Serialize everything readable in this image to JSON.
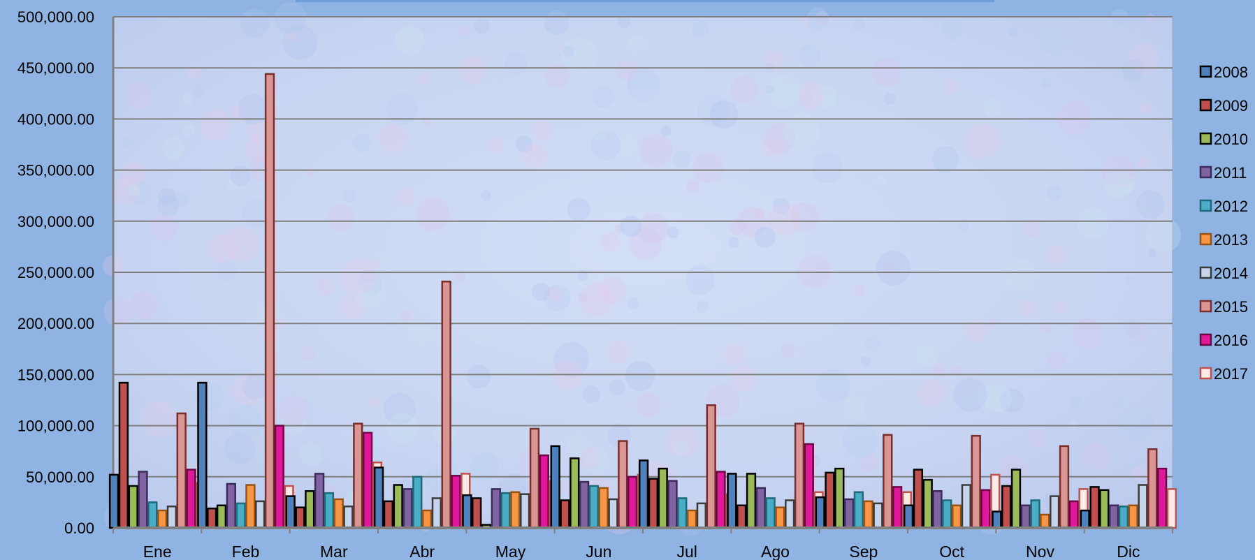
{
  "chart_data": {
    "type": "bar",
    "title": "",
    "xlabel": "",
    "ylabel": "",
    "ylim": [
      0,
      500000
    ],
    "ytick_step": 50000,
    "yticks": [
      "0.00",
      "50,000.00",
      "100,000.00",
      "150,000.00",
      "200,000.00",
      "250,000.00",
      "300,000.00",
      "350,000.00",
      "400,000.00",
      "450,000.00",
      "500,000.00"
    ],
    "grid": true,
    "legend_position": "right",
    "categories": [
      "Ene",
      "Feb",
      "Mar",
      "Abr",
      "May",
      "Jun",
      "Jul",
      "Ago",
      "Sep",
      "Oct",
      "Nov",
      "Dic"
    ],
    "series": [
      {
        "name": "2008",
        "color": "#4f81bd",
        "stroke": "#000000",
        "values": [
          52000,
          142000,
          31000,
          59000,
          32000,
          80000,
          66000,
          53000,
          30000,
          22000,
          16000,
          17000
        ]
      },
      {
        "name": "2009",
        "color": "#c0504d",
        "stroke": "#000000",
        "values": [
          142000,
          19000,
          20000,
          26000,
          29000,
          27000,
          48000,
          22000,
          54000,
          57000,
          41000,
          40000
        ]
      },
      {
        "name": "2010",
        "color": "#9bbb59",
        "stroke": "#000000",
        "values": [
          41000,
          22000,
          36000,
          42000,
          3000,
          68000,
          58000,
          53000,
          58000,
          47000,
          57000,
          37000
        ]
      },
      {
        "name": "2011",
        "color": "#8064a2",
        "stroke": "#3c2a5a",
        "values": [
          55000,
          43000,
          53000,
          38000,
          38000,
          45000,
          46000,
          39000,
          28000,
          36000,
          22000,
          22000
        ]
      },
      {
        "name": "2012",
        "color": "#4bacc6",
        "stroke": "#1f6a7a",
        "values": [
          25000,
          24000,
          34000,
          50000,
          34000,
          41000,
          29000,
          29000,
          35000,
          27000,
          27000,
          21000
        ]
      },
      {
        "name": "2013",
        "color": "#f79646",
        "stroke": "#9a5210",
        "values": [
          17000,
          42000,
          28000,
          17000,
          35000,
          39000,
          17000,
          20000,
          26000,
          22000,
          13000,
          22000
        ]
      },
      {
        "name": "2014",
        "color": "#c6d4ec",
        "stroke": "#3a3a3a",
        "values": [
          21000,
          26000,
          21000,
          29000,
          33000,
          28000,
          24000,
          27000,
          24000,
          42000,
          31000,
          42000
        ]
      },
      {
        "name": "2015",
        "color": "#d99694",
        "stroke": "#7a2e2c",
        "values": [
          112000,
          444000,
          102000,
          241000,
          97000,
          85000,
          120000,
          102000,
          91000,
          90000,
          80000,
          77000
        ]
      },
      {
        "name": "2016",
        "color": "#e0189a",
        "stroke": "#6a0845",
        "values": [
          57000,
          100000,
          93000,
          51000,
          71000,
          50000,
          55000,
          82000,
          40000,
          37000,
          26000,
          58000
        ]
      },
      {
        "name": "2017",
        "color": "#fde9e7",
        "stroke": "#c0504d",
        "values": [
          44000,
          41000,
          64000,
          53000,
          46000,
          52000,
          33000,
          35000,
          35000,
          52000,
          38000,
          38000
        ]
      }
    ]
  }
}
